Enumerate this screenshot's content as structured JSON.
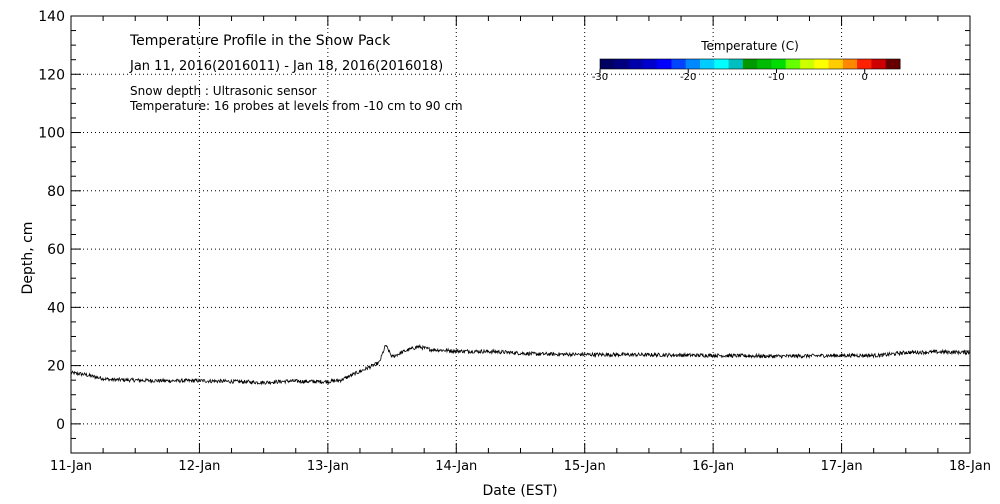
{
  "chart_data": {
    "type": "line",
    "title": "Temperature Profile in the Snow Pack",
    "subtitle": "Jan 11, 2016(2016011) - Jan 18, 2016(2016018)",
    "annotations": [
      "Snow depth : Ultrasonic sensor",
      "Temperature: 16 probes at levels from -10 cm to 90 cm"
    ],
    "xlabel": "Date (EST)",
    "ylabel": "Depth, cm",
    "xlim": [
      0,
      7
    ],
    "ylim": [
      -10,
      140
    ],
    "grid": true,
    "x_ticks": [
      {
        "x": 0,
        "label": "11-Jan"
      },
      {
        "x": 1,
        "label": "12-Jan"
      },
      {
        "x": 2,
        "label": "13-Jan"
      },
      {
        "x": 3,
        "label": "14-Jan"
      },
      {
        "x": 4,
        "label": "15-Jan"
      },
      {
        "x": 5,
        "label": "16-Jan"
      },
      {
        "x": 6,
        "label": "17-Jan"
      },
      {
        "x": 7,
        "label": "18-Jan"
      }
    ],
    "y_ticks": [
      0,
      20,
      40,
      60,
      80,
      100,
      120,
      140
    ],
    "series": [
      {
        "name": "Snow depth",
        "color": "#000000",
        "x": [
          0,
          0.1,
          0.2,
          0.3,
          0.5,
          0.7,
          1.0,
          1.3,
          1.5,
          1.7,
          1.9,
          2.0,
          2.1,
          2.2,
          2.3,
          2.4,
          2.45,
          2.5,
          2.6,
          2.7,
          2.8,
          3.0,
          3.3,
          3.6,
          4.0,
          4.5,
          5.0,
          5.5,
          6.0,
          6.3,
          6.5,
          6.8,
          7.0
        ],
        "values": [
          17.5,
          17,
          16,
          15.2,
          15,
          14.8,
          14.8,
          14.5,
          14.2,
          14.7,
          14.5,
          14.5,
          15,
          17,
          19,
          21,
          27,
          23,
          25,
          26.5,
          25.5,
          25,
          24.8,
          24,
          23.8,
          23.7,
          23.5,
          23.2,
          23.5,
          23.5,
          24.5,
          24.7,
          24.5
        ]
      }
    ],
    "colorbar": {
      "title": "Temperature (C)",
      "ticks": [
        -30,
        -20,
        -10,
        0
      ],
      "tick_labels": [
        "-30",
        "-20",
        "-10",
        "0"
      ],
      "range": [
        -30,
        4
      ],
      "colors": [
        "#000060",
        "#00007f",
        "#0000a8",
        "#0000cc",
        "#0000ff",
        "#0044ff",
        "#0088ff",
        "#00ccff",
        "#00ffff",
        "#00bfbf",
        "#009900",
        "#00bb00",
        "#00dd00",
        "#66ff00",
        "#ccff00",
        "#ffff00",
        "#ffcc00",
        "#ff8800",
        "#ff2200",
        "#cc0000",
        "#660000"
      ]
    }
  }
}
